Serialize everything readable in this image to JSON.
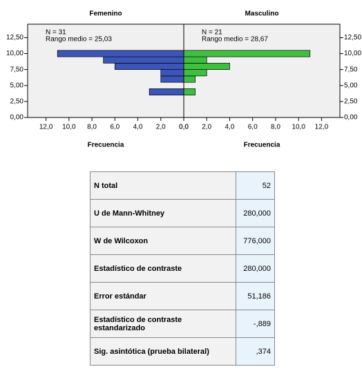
{
  "chart_data": [
    {
      "type": "histogram",
      "title": "Femenino",
      "annotations": [
        "N = 31",
        "Rango medio = 25,03"
      ],
      "xlabel": "Frecuencia",
      "bins": [
        3.5,
        4.5,
        5.5,
        6.5,
        7.5,
        8.5,
        9.5,
        10.5
      ],
      "values": [
        3,
        0,
        2,
        2,
        6,
        7,
        11
      ],
      "color": "#3c55b8",
      "xlim": [
        13.6,
        0
      ],
      "xticks": [
        {
          "value": 12,
          "label": "12,0"
        },
        {
          "value": 10,
          "label": "10,0"
        },
        {
          "value": 8,
          "label": "8,0"
        },
        {
          "value": 6,
          "label": "6,0"
        },
        {
          "value": 4,
          "label": "4,0"
        },
        {
          "value": 2,
          "label": "2,0"
        },
        {
          "value": 0,
          "label": "0,0"
        }
      ],
      "ylim": [
        0,
        14.6
      ],
      "yticks": [
        {
          "value": 0,
          "label": "0,00"
        },
        {
          "value": 2.5,
          "label": "2,50"
        },
        {
          "value": 5,
          "label": "5,00"
        },
        {
          "value": 7.5,
          "label": "7,50"
        },
        {
          "value": 10,
          "label": "10,00"
        },
        {
          "value": 12.5,
          "label": "12,50"
        }
      ],
      "yaxis_side": "left"
    },
    {
      "type": "histogram",
      "title": "Masculino",
      "annotations": [
        "N = 21",
        "Rango medio = 28,67"
      ],
      "xlabel": "Frecuencia",
      "bins": [
        3.5,
        4.5,
        5.5,
        6.5,
        7.5,
        8.5,
        9.5,
        10.5
      ],
      "values": [
        1,
        0,
        1,
        2,
        4,
        2,
        11
      ],
      "color": "#3fbf3f",
      "xlim": [
        0,
        13.6
      ],
      "xticks": [
        {
          "value": 0,
          "label": "0,0"
        },
        {
          "value": 2,
          "label": "2,0"
        },
        {
          "value": 4,
          "label": "4,0"
        },
        {
          "value": 6,
          "label": "6,0"
        },
        {
          "value": 8,
          "label": "8,0"
        },
        {
          "value": 10,
          "label": "10,0"
        },
        {
          "value": 12,
          "label": "12,0"
        }
      ],
      "ylim": [
        0,
        14.6
      ],
      "yticks": [
        {
          "value": 0,
          "label": "0,00"
        },
        {
          "value": 2.5,
          "label": "2,50"
        },
        {
          "value": 5,
          "label": "5,00"
        },
        {
          "value": 7.5,
          "label": "7,50"
        },
        {
          "value": 10,
          "label": "10,00"
        },
        {
          "value": 12.5,
          "label": "12,50"
        }
      ],
      "yaxis_side": "right"
    }
  ],
  "table": {
    "rows": [
      [
        "N total",
        "52"
      ],
      [
        "U de Mann-Whitney",
        "280,000"
      ],
      [
        "W de Wilcoxon",
        "776,000"
      ],
      [
        "Estadístico de contraste",
        "280,000"
      ],
      [
        "Error estándar",
        "51,186"
      ],
      [
        "Estadístico de contraste estandarizado",
        "-,889"
      ],
      [
        "Sig. asintótica (prueba bilateral)",
        ",374"
      ]
    ]
  }
}
